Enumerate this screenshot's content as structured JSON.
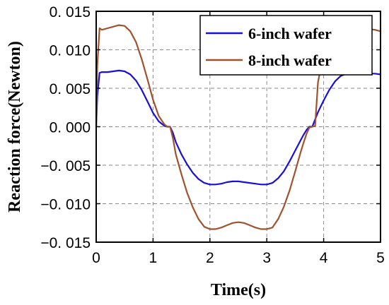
{
  "chart_data": {
    "type": "line",
    "title": "",
    "xlabel": "Time(s)",
    "ylabel": "Reaction force(Newton)",
    "xlim": [
      0,
      5
    ],
    "ylim": [
      -0.015,
      0.015
    ],
    "x_ticks": [
      "0",
      "1",
      "2",
      "3",
      "4",
      "5"
    ],
    "y_ticks": [
      "0. 015",
      "0. 010",
      "0. 005",
      "0. 000",
      "−0. 005",
      "−0. 010",
      "−0. 015"
    ],
    "grid": true,
    "legend_position": "top-right",
    "series": [
      {
        "name": "6-inch wafer",
        "color": "#1a0fd8",
        "x": [
          0,
          0.02,
          0.06,
          0.1,
          0.2,
          0.3,
          0.4,
          0.5,
          0.6,
          0.7,
          0.8,
          0.9,
          1.0,
          1.1,
          1.2,
          1.25,
          1.3,
          1.35,
          1.4,
          1.5,
          1.6,
          1.7,
          1.8,
          1.9,
          2.0,
          2.1,
          2.2,
          2.3,
          2.4,
          2.5,
          2.6,
          2.7,
          2.8,
          2.9,
          3.0,
          3.1,
          3.2,
          3.3,
          3.4,
          3.5,
          3.6,
          3.65,
          3.7,
          3.75,
          3.8,
          3.9,
          4.0,
          4.1,
          4.2,
          4.3,
          4.4,
          4.5,
          4.6,
          4.7,
          4.8,
          4.9,
          5.0
        ],
        "y": [
          0.0,
          0.004,
          0.007,
          0.0071,
          0.0071,
          0.0072,
          0.0073,
          0.0072,
          0.0068,
          0.006,
          0.0048,
          0.0033,
          0.0018,
          0.0007,
          0.0001,
          0.0,
          0.0,
          -0.0008,
          -0.002,
          -0.0036,
          -0.0049,
          -0.006,
          -0.0068,
          -0.0073,
          -0.0075,
          -0.0075,
          -0.0074,
          -0.0072,
          -0.0071,
          -0.0071,
          -0.0072,
          -0.0073,
          -0.0074,
          -0.0075,
          -0.0075,
          -0.0073,
          -0.0067,
          -0.0058,
          -0.0045,
          -0.0031,
          -0.0017,
          -0.001,
          -0.0004,
          0.0,
          0.0,
          0.0019,
          0.0034,
          0.0048,
          0.0059,
          0.0066,
          0.0069,
          0.007,
          0.007,
          0.0069,
          0.0069,
          0.0069,
          0.0068
        ]
      },
      {
        "name": "8-inch wafer",
        "color": "#a0522d",
        "x": [
          0,
          0.02,
          0.06,
          0.1,
          0.2,
          0.3,
          0.4,
          0.5,
          0.6,
          0.7,
          0.8,
          0.9,
          1.0,
          1.1,
          1.2,
          1.25,
          1.3,
          1.35,
          1.4,
          1.5,
          1.6,
          1.7,
          1.8,
          1.9,
          2.0,
          2.1,
          2.2,
          2.3,
          2.4,
          2.5,
          2.6,
          2.7,
          2.8,
          2.9,
          3.0,
          3.1,
          3.2,
          3.3,
          3.4,
          3.5,
          3.6,
          3.65,
          3.7,
          3.75,
          3.8,
          3.85,
          3.9,
          4.0,
          4.1,
          4.2,
          4.3,
          4.4,
          4.5,
          4.6,
          4.7,
          4.8,
          4.9,
          5.0
        ],
        "y": [
          0.0,
          0.008,
          0.0128,
          0.0126,
          0.0128,
          0.013,
          0.0132,
          0.0131,
          0.0124,
          0.011,
          0.0088,
          0.0062,
          0.0035,
          0.0014,
          0.0003,
          0.0,
          0.0,
          -0.0015,
          -0.0036,
          -0.0062,
          -0.0086,
          -0.0105,
          -0.012,
          -0.013,
          -0.0133,
          -0.0133,
          -0.0131,
          -0.0128,
          -0.0125,
          -0.0124,
          -0.0125,
          -0.0128,
          -0.0131,
          -0.0133,
          -0.0133,
          -0.0131,
          -0.012,
          -0.0104,
          -0.0083,
          -0.0058,
          -0.0032,
          -0.002,
          -0.0009,
          -0.0001,
          0.0,
          0.0001,
          0.0058,
          0.0094,
          0.0116,
          0.0126,
          0.0129,
          0.013,
          0.013,
          0.0129,
          0.0128,
          0.0127,
          0.0126,
          0.0124
        ]
      }
    ]
  }
}
